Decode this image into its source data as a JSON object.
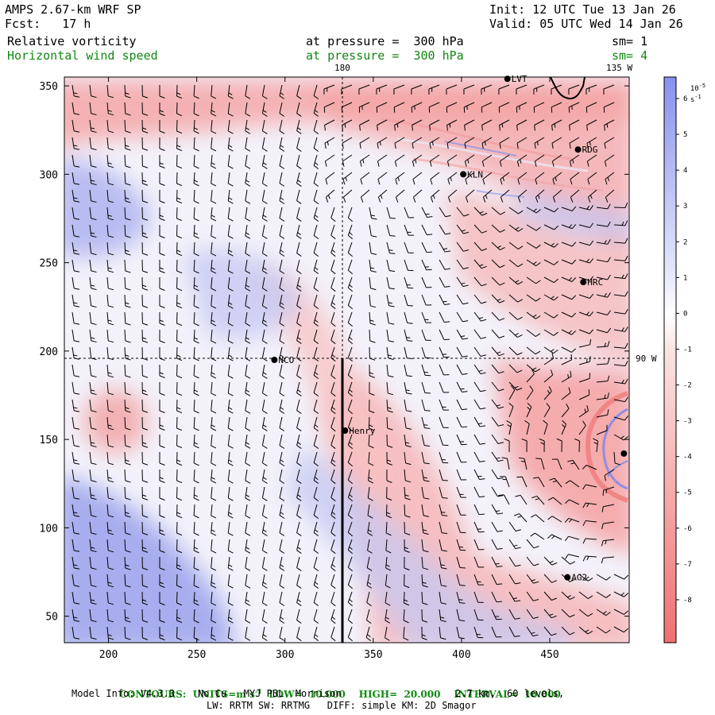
{
  "header": {
    "title": "AMPS 2.67-km WRF SP",
    "forecast": "Fcst:   17 h",
    "init": "Init: 12 UTC Tue 13 Jan 26",
    "valid": "Valid: 05 UTC Wed 14 Jan 26",
    "field1": {
      "name": "Relative vorticity",
      "level": "at pressure =  300 hPa",
      "sm": "sm= 1"
    },
    "field2": {
      "name": "Horizontal wind speed",
      "level": "at pressure =  300 hPa",
      "sm": "sm= 4"
    }
  },
  "map": {
    "x_ticks": [
      "200",
      "250",
      "300",
      "350",
      "400",
      "450"
    ],
    "y_ticks": [
      "350",
      "300",
      "250",
      "200",
      "150",
      "100",
      "50"
    ],
    "x_range": [
      175,
      495
    ],
    "y_range": [
      35,
      355
    ],
    "meridian_labels": {
      "top_180": "180",
      "top_135w": "135 W",
      "right_90w": "90 W"
    },
    "stations": [
      {
        "name": "LVT",
        "x": 426,
        "y": 354
      },
      {
        "name": "RDG",
        "x": 466,
        "y": 314
      },
      {
        "name": "KLN",
        "x": 401,
        "y": 300
      },
      {
        "name": "HRC",
        "x": 469,
        "y": 239
      },
      {
        "name": "NCO",
        "x": 294,
        "y": 195
      },
      {
        "name": "Henry",
        "x": 334,
        "y": 155
      },
      {
        "name": "AG2",
        "x": 460,
        "y": 72
      },
      {
        "name": "",
        "x": 492,
        "y": 142
      }
    ],
    "colors": {
      "positive": "#6a74e8",
      "negative": "#f06a6a",
      "neutral": "#ffffff"
    }
  },
  "colorbar": {
    "unit_label": "10",
    "unit_exp": "-5",
    "unit_suffix": "s",
    "unit_suffix_exp": "-1",
    "ticks": [
      "6",
      "5",
      "4",
      "3",
      "2",
      "1",
      "0",
      "-1",
      "-2",
      "-3",
      "-4",
      "-5",
      "-6",
      "-7",
      "-8"
    ],
    "range": [
      6.6,
      -9.2
    ]
  },
  "footer": {
    "contours_label": "CONTOURS:",
    "units_label": "UNITS=m s",
    "units_exp": "-1",
    "low": "LOW=  10.000",
    "high": "HIGH=  20.000",
    "interval": "INTERVAL=  10.000",
    "model_info": "Model Info: V4.3.3    No Cu   MYJ PBL  Morrison",
    "resolution": "2.7 km,  60 levels,",
    "physics": "LW: RRTM SW: RRTMG   DIFF: simple KM: 2D Smagor"
  }
}
